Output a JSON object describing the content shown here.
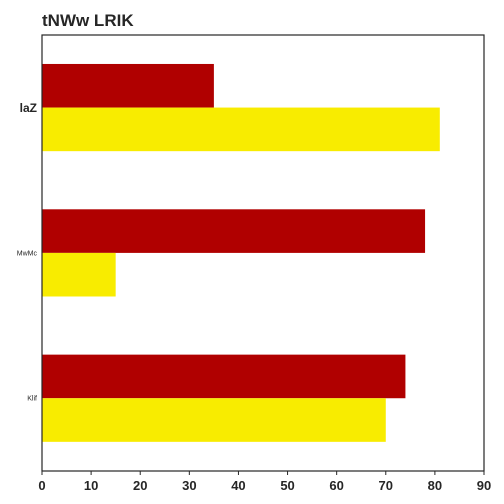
{
  "chart_data": {
    "type": "bar",
    "orientation": "horizontal",
    "title": "tNWw LRIK",
    "xlabel": "",
    "ylabel": "",
    "categories": [
      "laZ",
      "MwMc",
      "Klif"
    ],
    "series": [
      {
        "color": "#b00000",
        "values": [
          35,
          78,
          74
        ]
      },
      {
        "color": "#f8ec00",
        "values": [
          81,
          15,
          70
        ]
      }
    ],
    "xlim": [
      0,
      90
    ],
    "xticks": [
      0,
      10,
      20,
      30,
      40,
      50,
      60,
      70,
      80,
      90
    ],
    "grid": false,
    "legend": "none"
  }
}
